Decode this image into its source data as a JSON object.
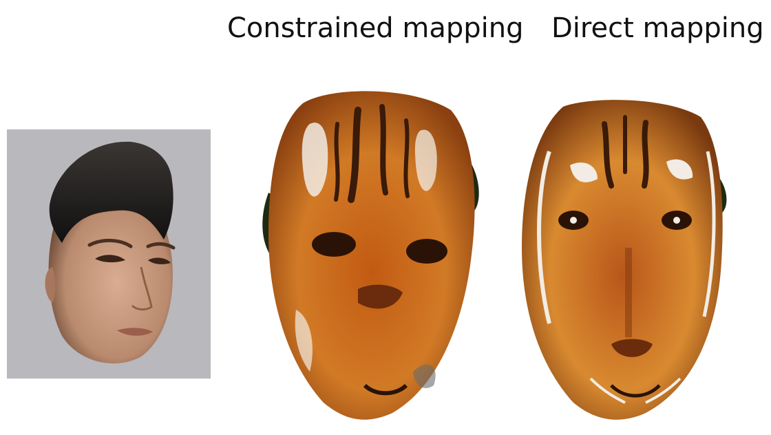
{
  "labels": {
    "constrained": "Constrained mapping",
    "direct": "Direct mapping"
  },
  "images": {
    "source": "3D scanned human face mesh rendered with photo texture on grey background",
    "constrained": "Face mesh textured with tiger image using constrained mapping",
    "direct": "Face mesh textured with tiger image using direct mapping"
  },
  "colors": {
    "source_background": "#b9b8bc",
    "hair": "#1b1a19",
    "skin": "#c89a7e",
    "tiger_orange": "#c8681c",
    "tiger_dark": "#3a1a08",
    "tiger_white": "#f2ece4"
  }
}
